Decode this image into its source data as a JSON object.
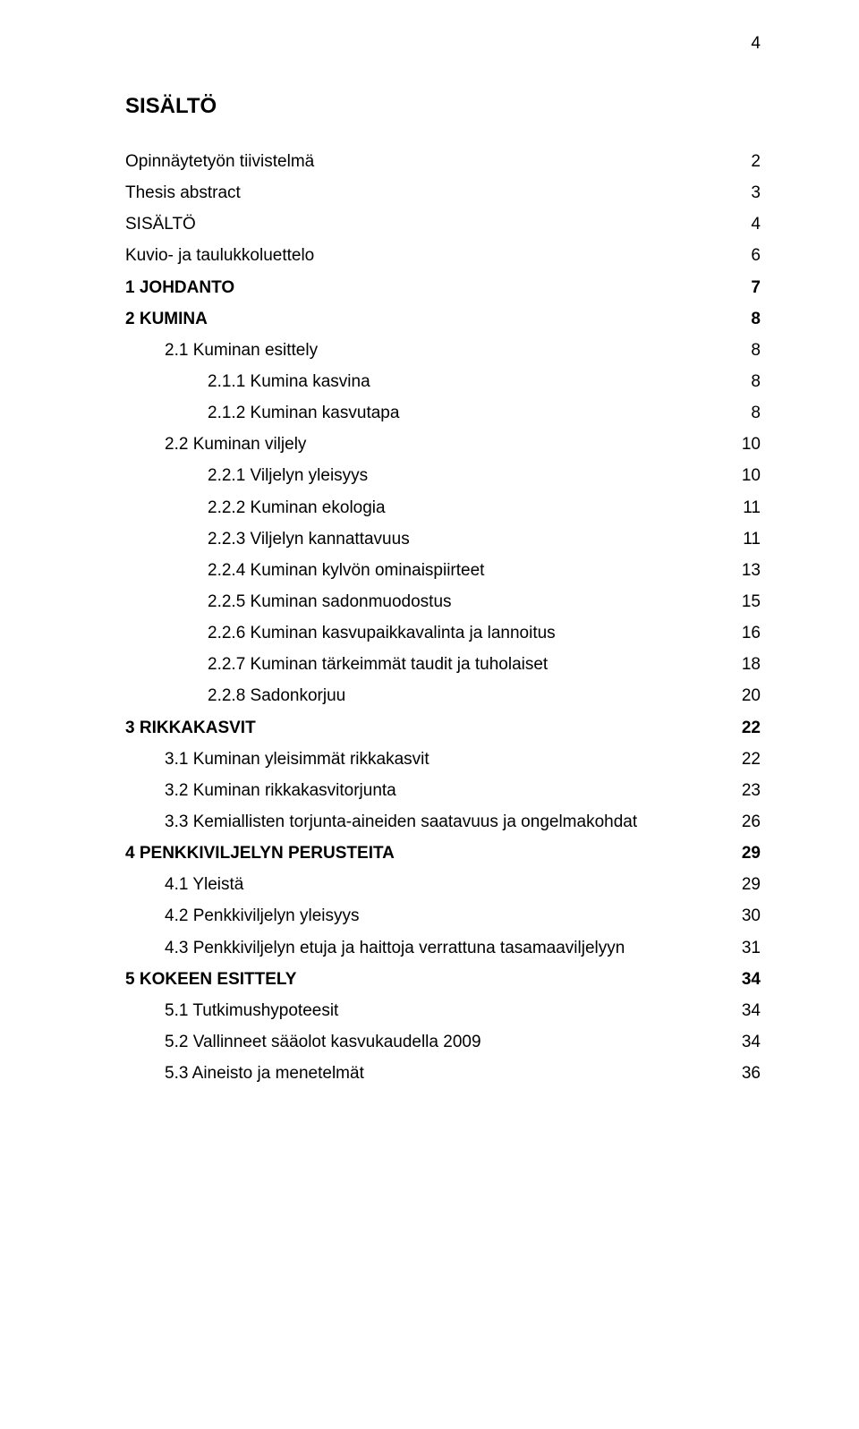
{
  "page_number": "4",
  "title": "SISÄLTÖ",
  "colors": {
    "background": "#ffffff",
    "text": "#000000"
  },
  "typography": {
    "font_family": "Arial",
    "title_fontsize": 24,
    "body_fontsize": 19,
    "line_height": 1.85
  },
  "toc": [
    {
      "label": "Opinnäytetyön tiivistelmä",
      "page": "2",
      "level": 0,
      "bold": false
    },
    {
      "label": "Thesis abstract",
      "page": "3",
      "level": 0,
      "bold": false
    },
    {
      "label": "SISÄLTÖ",
      "page": "4",
      "level": 0,
      "bold": false
    },
    {
      "label": "Kuvio- ja taulukkoluettelo",
      "page": "6",
      "level": 0,
      "bold": false
    },
    {
      "label": "1 JOHDANTO",
      "page": "7",
      "level": 1,
      "bold": true
    },
    {
      "label": "2 KUMINA",
      "page": "8",
      "level": 1,
      "bold": true
    },
    {
      "label": "2.1 Kuminan esittely",
      "page": "8",
      "level": 2,
      "bold": false
    },
    {
      "label": "2.1.1 Kumina kasvina",
      "page": "8",
      "level": 3,
      "bold": false
    },
    {
      "label": "2.1.2 Kuminan kasvutapa",
      "page": "8",
      "level": 3,
      "bold": false
    },
    {
      "label": "2.2 Kuminan viljely",
      "page": "10",
      "level": 2,
      "bold": false
    },
    {
      "label": "2.2.1 Viljelyn yleisyys",
      "page": "10",
      "level": 3,
      "bold": false
    },
    {
      "label": "2.2.2 Kuminan ekologia",
      "page": "11",
      "level": 3,
      "bold": false
    },
    {
      "label": "2.2.3 Viljelyn kannattavuus",
      "page": "11",
      "level": 3,
      "bold": false
    },
    {
      "label": "2.2.4 Kuminan kylvön ominaispiirteet",
      "page": "13",
      "level": 3,
      "bold": false
    },
    {
      "label": "2.2.5 Kuminan sadonmuodostus",
      "page": "15",
      "level": 3,
      "bold": false
    },
    {
      "label": "2.2.6 Kuminan kasvupaikkavalinta ja lannoitus",
      "page": "16",
      "level": 3,
      "bold": false
    },
    {
      "label": "2.2.7 Kuminan tärkeimmät taudit ja tuholaiset",
      "page": "18",
      "level": 3,
      "bold": false
    },
    {
      "label": "2.2.8 Sadonkorjuu",
      "page": "20",
      "level": 3,
      "bold": false
    },
    {
      "label": "3 RIKKAKASVIT",
      "page": "22",
      "level": 1,
      "bold": true
    },
    {
      "label": "3.1 Kuminan yleisimmät rikkakasvit",
      "page": "22",
      "level": 2,
      "bold": false
    },
    {
      "label": "3.2 Kuminan rikkakasvitorjunta",
      "page": "23",
      "level": 2,
      "bold": false
    },
    {
      "label": "3.3 Kemiallisten torjunta-aineiden saatavuus ja ongelmakohdat",
      "page": "26",
      "level": 2,
      "bold": false
    },
    {
      "label": "4 PENKKIVILJELYN PERUSTEITA",
      "page": "29",
      "level": 1,
      "bold": true
    },
    {
      "label": "4.1 Yleistä",
      "page": "29",
      "level": 2,
      "bold": false
    },
    {
      "label": "4.2 Penkkiviljelyn yleisyys",
      "page": "30",
      "level": 2,
      "bold": false
    },
    {
      "label": "4.3 Penkkiviljelyn etuja ja haittoja verrattuna tasamaaviljelyyn",
      "page": "31",
      "level": 2,
      "bold": false
    },
    {
      "label": "5 KOKEEN ESITTELY",
      "page": "34",
      "level": 1,
      "bold": true
    },
    {
      "label": "5.1 Tutkimushypoteesit",
      "page": "34",
      "level": 2,
      "bold": false
    },
    {
      "label": "5.2 Vallinneet sääolot kasvukaudella 2009",
      "page": "34",
      "level": 2,
      "bold": false
    },
    {
      "label": "5.3 Aineisto ja menetelmät",
      "page": "36",
      "level": 2,
      "bold": false
    }
  ]
}
